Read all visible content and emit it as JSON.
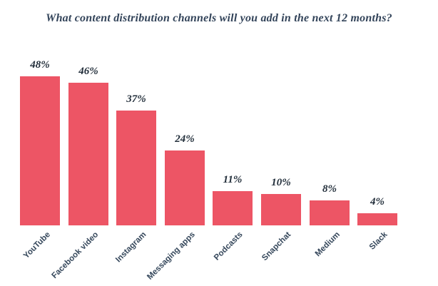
{
  "page": {
    "background": "#ffffff"
  },
  "title": "What content distribution channels will you add in the next 12 months?",
  "colors": {
    "bar": "#ed5565",
    "title_text": "#33445a",
    "value_text": "#232f3b",
    "tick_text": "#36485c"
  },
  "chart_data": {
    "type": "bar",
    "title": "What content distribution channels will you add in the next 12 months?",
    "categories": [
      "YouTube",
      "Facebook video",
      "Instagram",
      "Messaging apps",
      "Podcasts",
      "Snapchat",
      "Medium",
      "Slack"
    ],
    "values": [
      48,
      46,
      37,
      24,
      11,
      10,
      8,
      4
    ],
    "value_suffix": "%",
    "xlabel": "",
    "ylabel": "",
    "ylim": [
      0,
      50
    ],
    "grid": false,
    "legend": false,
    "axes_visible": false,
    "bar_color": "#ed5565",
    "tick_label_rotation_deg": 45
  }
}
